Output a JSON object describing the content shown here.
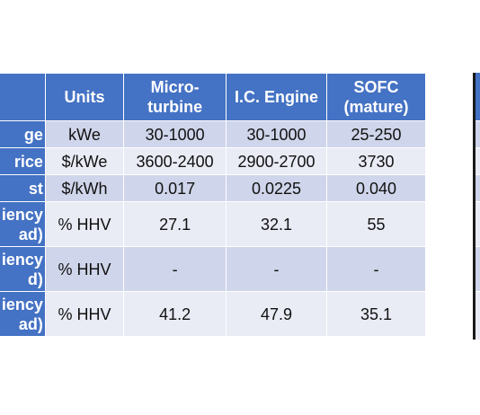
{
  "table": {
    "headers": [
      "",
      "Units",
      "Micro-\nturbine",
      "I.C. Engine",
      "SOFC\n(mature)"
    ],
    "rows": [
      {
        "label": "ge",
        "cells": [
          "kWe",
          "30-1000",
          "30-1000",
          "25-250"
        ]
      },
      {
        "label": "rice",
        "cells": [
          "$/kWe",
          "3600-2400",
          "2900-2700",
          "3730"
        ]
      },
      {
        "label": "st",
        "cells": [
          "$/kWh",
          "0.017",
          "0.0225",
          "0.040"
        ]
      },
      {
        "label": "iency\nad)",
        "cells": [
          "% HHV",
          "27.1",
          "32.1",
          "55"
        ]
      },
      {
        "label": "iency\nd)",
        "cells": [
          "% HHV",
          "-",
          "-",
          "-"
        ]
      },
      {
        "label": "iency\nad)",
        "cells": [
          "% HHV",
          "41.2",
          "47.9",
          "35.1"
        ]
      }
    ]
  },
  "colors": {
    "header_bg": "#4472c4",
    "row_light": "#cfd5ea",
    "row_dark": "#e9ebf5"
  }
}
